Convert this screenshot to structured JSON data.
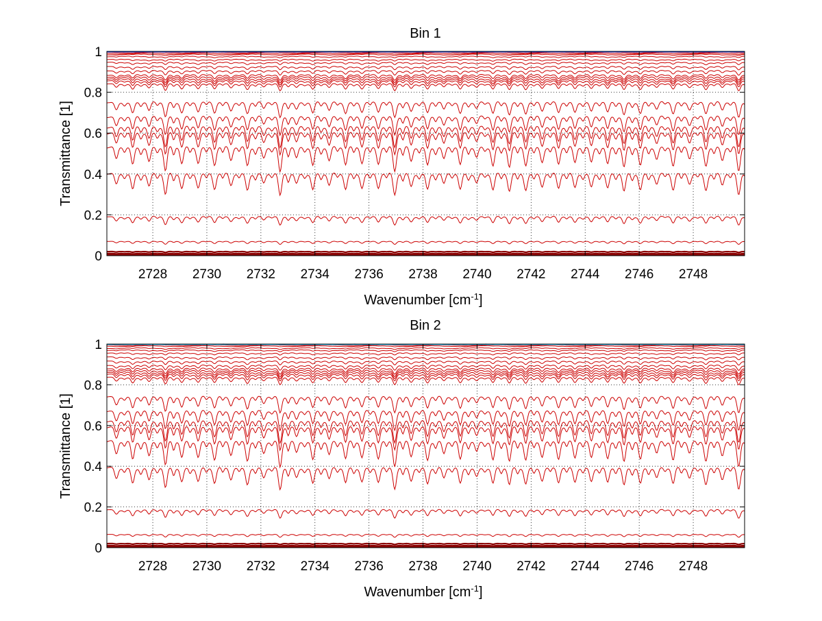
{
  "chart_data": [
    {
      "type": "line",
      "title": "Bin 1",
      "xlabel": "Wavenumber [cm",
      "xlabel_sup": "-1",
      "xlabel_end": "]",
      "ylabel": "Transmittance [1]",
      "xlim": [
        2726.3,
        2749.9
      ],
      "ylim": [
        0,
        1
      ],
      "grid": true,
      "xticks": [
        2728,
        2730,
        2732,
        2734,
        2736,
        2738,
        2740,
        2742,
        2744,
        2746,
        2748
      ],
      "yticks": [
        0,
        0.2,
        0.4,
        0.6,
        0.8,
        1
      ],
      "ytick_labels": [
        "0",
        "0.2",
        "0.4",
        "0.6",
        "0.8",
        "1"
      ],
      "series_color": "#cc0000",
      "top_trace_colors": [
        "#00bfff",
        "#0040ff"
      ],
      "series_levels": [
        1.0,
        0.995,
        0.99,
        0.985,
        0.975,
        0.96,
        0.945,
        0.925,
        0.905,
        0.885,
        0.875,
        0.865,
        0.855,
        0.84,
        0.75,
        0.68,
        0.63,
        0.6,
        0.53,
        0.4,
        0.19,
        0.07,
        0.02,
        0.01,
        0.005
      ],
      "absorption_lines_per_cm": 1.65
    },
    {
      "type": "line",
      "title": "Bin 2",
      "xlabel": "Wavenumber [cm",
      "xlabel_sup": "-1",
      "xlabel_end": "]",
      "ylabel": "Transmittance [1]",
      "xlim": [
        2726.3,
        2749.9
      ],
      "ylim": [
        0,
        1
      ],
      "grid": true,
      "xticks": [
        2728,
        2730,
        2732,
        2734,
        2736,
        2738,
        2740,
        2742,
        2744,
        2746,
        2748
      ],
      "yticks": [
        0,
        0.2,
        0.4,
        0.6,
        0.8,
        1
      ],
      "ytick_labels": [
        "0",
        "0.2",
        "0.4",
        "0.6",
        "0.8",
        "1"
      ],
      "series_color": "#cc0000",
      "top_trace_colors": [
        "#0040ff",
        "#00bfff"
      ],
      "series_levels": [
        1.0,
        0.995,
        0.99,
        0.98,
        0.97,
        0.955,
        0.935,
        0.915,
        0.895,
        0.88,
        0.87,
        0.86,
        0.85,
        0.835,
        0.74,
        0.67,
        0.62,
        0.59,
        0.52,
        0.39,
        0.185,
        0.065,
        0.02,
        0.01,
        0.005
      ],
      "absorption_lines_per_cm": 1.65
    }
  ]
}
